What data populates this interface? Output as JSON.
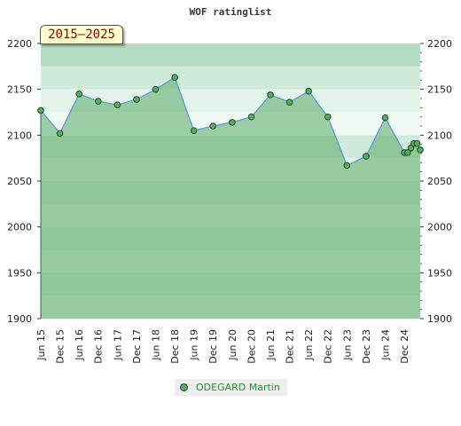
{
  "chart_data": {
    "type": "area",
    "title": "WOF ratinglist",
    "badge": "2015–2025",
    "x_ticks": [
      "Jun 15",
      "Dec 15",
      "Jun 16",
      "Dec 16",
      "Jun 17",
      "Dec 17",
      "Jun 18",
      "Dec 18",
      "Jun 19",
      "Dec 19",
      "Jun 20",
      "Dec 20",
      "Jun 21",
      "Dec 21",
      "Jun 22",
      "Dec 22",
      "Jun 23",
      "Dec 23",
      "Jun 24",
      "Dec 24"
    ],
    "y_ticks": [
      1900,
      1950,
      2000,
      2050,
      2100,
      2150,
      2200
    ],
    "ylim": [
      1900,
      2200
    ],
    "grid": true,
    "legend_placement": "bottom",
    "series": [
      {
        "name": "ODEGARD Martin",
        "color": "#5aa964",
        "line_color": "#5b9bd5",
        "x": [
          "2015-06",
          "2015-12",
          "2016-06",
          "2016-12",
          "2017-06",
          "2017-12",
          "2018-06",
          "2018-12",
          "2019-06",
          "2019-12",
          "2020-06",
          "2020-12",
          "2021-06",
          "2021-12",
          "2022-06",
          "2022-12",
          "2023-06",
          "2023-12",
          "2024-06",
          "2024-12",
          "2025-01",
          "2025-02",
          "2025-03",
          "2025-04",
          "2025-05"
        ],
        "values": [
          2127,
          2102,
          2145,
          2137,
          2133,
          2139,
          2150,
          2163,
          2105,
          2110,
          2114,
          2120,
          2144,
          2136,
          2148,
          2120,
          2067,
          2077,
          2119,
          2081,
          2081,
          2086,
          2091,
          2091,
          2084
        ]
      }
    ]
  }
}
